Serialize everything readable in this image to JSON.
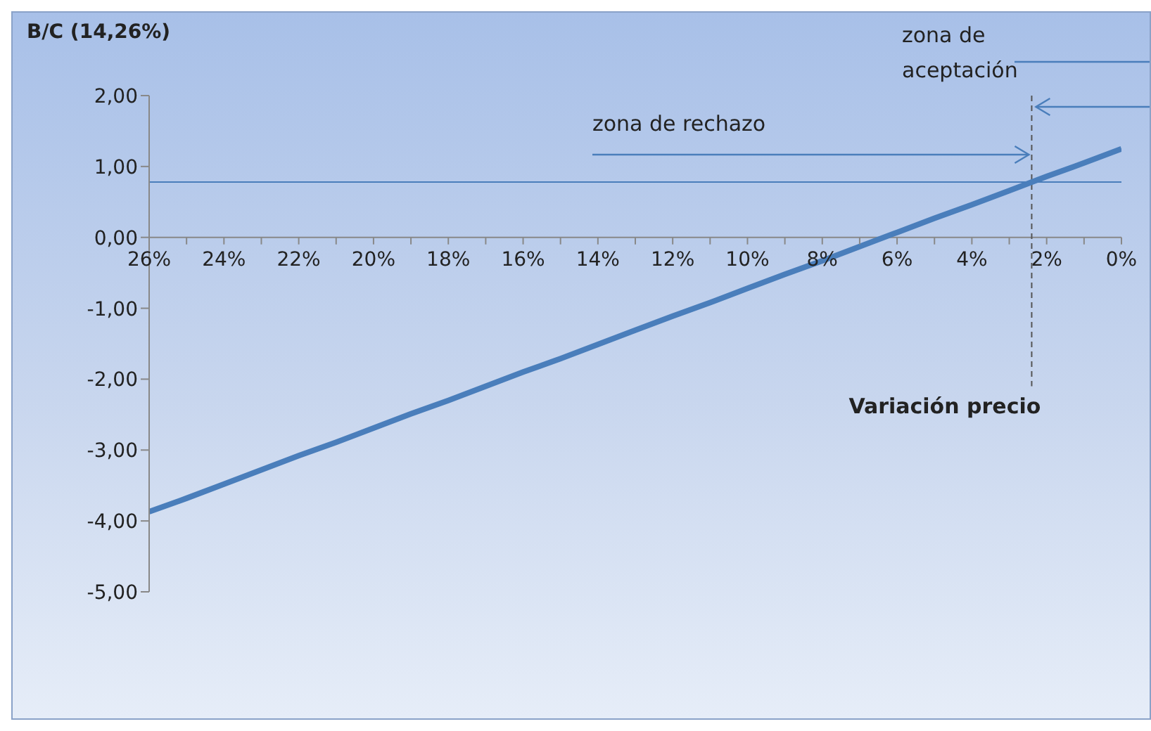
{
  "chart_data": {
    "type": "line",
    "ylabel": "B/C (14,26%)",
    "xlabel": "Variación precio",
    "x": [
      26,
      25,
      24,
      23,
      22,
      21,
      20,
      19,
      18,
      17,
      16,
      15,
      14,
      13,
      12,
      11,
      10,
      9,
      8,
      7,
      6,
      5,
      4,
      3,
      2,
      1,
      0
    ],
    "series": [
      {
        "color": "#4a7ebb",
        "values": [
          -3.87,
          -3.68,
          -3.48,
          -3.28,
          -3.08,
          -2.89,
          -2.69,
          -2.49,
          -2.3,
          -2.1,
          -1.9,
          -1.71,
          -1.51,
          -1.31,
          -1.11,
          -0.92,
          -0.72,
          -0.52,
          -0.33,
          -0.13,
          0.07,
          0.27,
          0.46,
          0.66,
          0.86,
          1.05,
          1.25
        ]
      }
    ],
    "xlim": [
      26,
      0
    ],
    "xticks": [
      {
        "value": 26,
        "label": "26%"
      },
      {
        "value": 25,
        "label": null
      },
      {
        "value": 24,
        "label": "24%"
      },
      {
        "value": 23,
        "label": null
      },
      {
        "value": 22,
        "label": "22%"
      },
      {
        "value": 21,
        "label": null
      },
      {
        "value": 20,
        "label": "20%"
      },
      {
        "value": 19,
        "label": null
      },
      {
        "value": 18,
        "label": "18%"
      },
      {
        "value": 17,
        "label": null
      },
      {
        "value": 16,
        "label": "16%"
      },
      {
        "value": 15,
        "label": null
      },
      {
        "value": 14,
        "label": "14%"
      },
      {
        "value": 13,
        "label": null
      },
      {
        "value": 12,
        "label": "12%"
      },
      {
        "value": 11,
        "label": null
      },
      {
        "value": 10,
        "label": "10%"
      },
      {
        "value": 9,
        "label": null
      },
      {
        "value": 8,
        "label": "8%"
      },
      {
        "value": 7,
        "label": null
      },
      {
        "value": 6,
        "label": "6%"
      },
      {
        "value": 5,
        "label": null
      },
      {
        "value": 4,
        "label": "4%"
      },
      {
        "value": 3,
        "label": null
      },
      {
        "value": 2,
        "label": "2%"
      },
      {
        "value": 1,
        "label": null
      },
      {
        "value": 0,
        "label": "0%"
      }
    ],
    "ylim": [
      -5,
      2
    ],
    "yticks": [
      {
        "value": -5,
        "label": "-5,00"
      },
      {
        "value": -4,
        "label": "-4,00"
      },
      {
        "value": -3,
        "label": "-3,00"
      },
      {
        "value": -2,
        "label": "-2,00"
      },
      {
        "value": -1,
        "label": "-1,00"
      },
      {
        "value": 0,
        "label": "0,00"
      },
      {
        "value": 1,
        "label": "1,00"
      },
      {
        "value": 2,
        "label": "2,00"
      }
    ],
    "ref_lines": [
      {
        "axis": "y",
        "value": 0.78,
        "color": "#4a7ebb",
        "line_style": "solid"
      },
      {
        "axis": "x",
        "value": 2.4,
        "color": "#555555",
        "line_style": "dashed"
      }
    ],
    "annotations": [
      "zona de rechazo",
      "zona de aceptación"
    ],
    "grid": false,
    "legend": false,
    "marker": "none",
    "line_style": "solid"
  }
}
